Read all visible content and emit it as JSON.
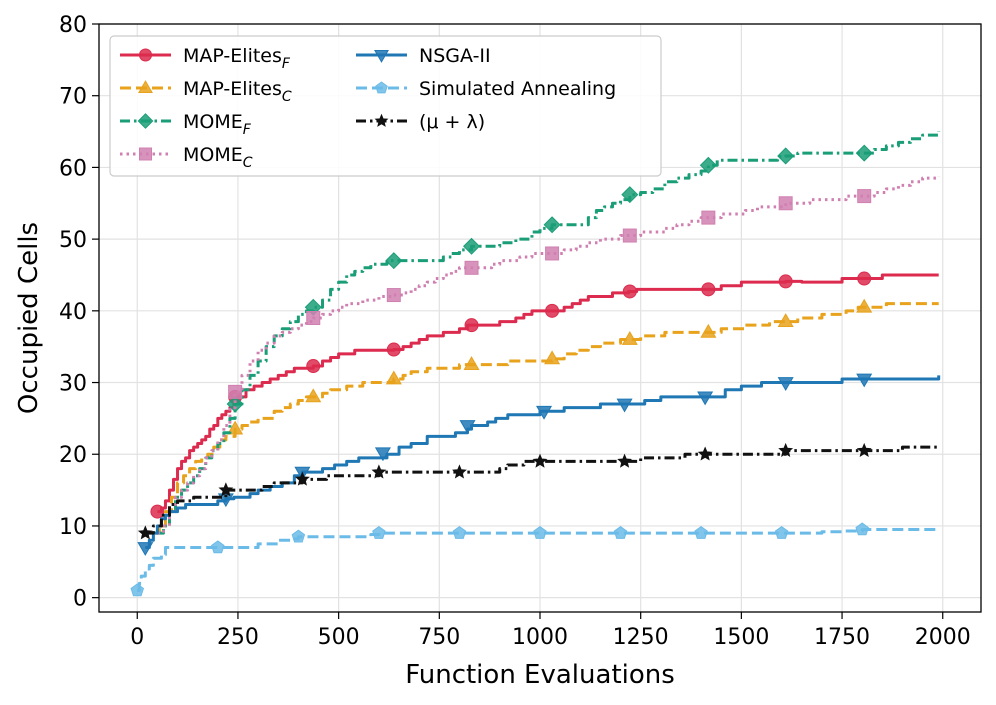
{
  "chart_data": {
    "type": "line",
    "title": "",
    "xlabel": "Function Evaluations",
    "ylabel": "Occupied Cells",
    "xlim": [
      -95,
      2095
    ],
    "ylim": [
      -2,
      80
    ],
    "xticks": [
      0,
      250,
      500,
      750,
      1000,
      1250,
      1500,
      1750,
      2000
    ],
    "yticks": [
      0,
      10,
      20,
      30,
      40,
      50,
      60,
      70,
      80
    ],
    "grid": true,
    "legend_position": "upper-left",
    "series": [
      {
        "name": "MAP-Elites",
        "subscript": "F",
        "color": "#dc2b4e",
        "dash": "solid",
        "marker": "circle",
        "x": [
          50,
          60,
          70,
          80,
          90,
          100,
          110,
          120,
          130,
          140,
          150,
          160,
          170,
          180,
          190,
          200,
          210,
          220,
          230,
          240,
          250,
          270,
          290,
          310,
          330,
          350,
          370,
          390,
          410,
          437,
          460,
          480,
          500,
          520,
          540,
          560,
          580,
          600,
          620,
          637,
          660,
          680,
          700,
          720,
          740,
          760,
          780,
          800,
          820,
          830,
          860,
          880,
          900,
          920,
          940,
          960,
          980,
          1000,
          1020,
          1030,
          1060,
          1080,
          1100,
          1120,
          1140,
          1160,
          1180,
          1200,
          1220,
          1240,
          1270,
          1300,
          1350,
          1380,
          1400,
          1420,
          1450,
          1480,
          1500,
          1550,
          1580,
          1610,
          1650,
          1700,
          1750,
          1800,
          1850,
          1900,
          1950,
          1990
        ],
        "y": [
          12,
          12.5,
          13.5,
          15,
          16.5,
          18,
          19,
          19.5,
          20.5,
          21,
          21.5,
          22,
          22.5,
          23.5,
          24,
          25,
          25.5,
          26,
          26.5,
          27,
          28,
          29,
          29.5,
          30,
          30.5,
          31,
          31.5,
          32,
          32,
          32.3,
          33,
          33.5,
          34,
          34,
          34.5,
          34.5,
          34.5,
          34.5,
          34.5,
          34.6,
          35,
          35.5,
          36,
          36.5,
          36.5,
          37,
          37,
          37.5,
          38,
          38,
          38,
          38,
          38.5,
          38.5,
          39,
          39.5,
          40,
          40,
          40,
          40,
          40.5,
          41,
          41.5,
          42,
          42,
          42,
          42.5,
          42.5,
          42.7,
          43,
          43,
          43,
          43,
          43,
          43,
          43,
          43.5,
          43.5,
          44,
          44,
          44,
          44.1,
          44,
          44,
          44.5,
          44.5,
          45,
          45,
          45,
          45
        ],
        "marker_x": [
          50,
          243,
          437,
          637,
          830,
          1030,
          1223,
          1418,
          1610,
          1805
        ],
        "marker_y": [
          12,
          28,
          32.3,
          34.6,
          38,
          40,
          42.7,
          43,
          44.1,
          44.5
        ]
      },
      {
        "name": "MAP-Elites",
        "subscript": "C",
        "color": "#e8a21b",
        "dash": "dashed",
        "marker": "triangle-up",
        "x": [
          40,
          55,
          70,
          85,
          100,
          115,
          130,
          145,
          160,
          175,
          190,
          205,
          220,
          243,
          260,
          280,
          300,
          320,
          340,
          360,
          380,
          400,
          420,
          437,
          460,
          480,
          500,
          520,
          540,
          560,
          580,
          600,
          620,
          637,
          660,
          680,
          700,
          720,
          740,
          760,
          780,
          800,
          830,
          860,
          880,
          900,
          920,
          950,
          980,
          1000,
          1030,
          1060,
          1090,
          1120,
          1150,
          1180,
          1200,
          1223,
          1250,
          1280,
          1310,
          1350,
          1380,
          1418,
          1450,
          1480,
          1510,
          1540,
          1570,
          1610,
          1640,
          1670,
          1700,
          1730,
          1760,
          1790,
          1805,
          1830,
          1860,
          1890,
          1920,
          1950,
          1990
        ],
        "y": [
          9,
          10,
          12,
          14,
          16,
          17,
          18,
          19,
          19.5,
          20,
          21,
          22,
          22.5,
          23.5,
          24,
          24.5,
          25,
          25,
          26,
          26.5,
          27,
          27.5,
          28,
          28,
          28.5,
          29,
          29,
          29.5,
          29.5,
          30,
          30,
          30,
          30,
          30.5,
          31,
          31.5,
          31.5,
          32,
          32,
          32,
          32,
          32.5,
          32.5,
          32.5,
          32.5,
          32.5,
          33,
          33,
          33,
          33,
          33.3,
          34,
          34.5,
          35,
          35.5,
          35.5,
          36,
          36,
          36.5,
          36.5,
          37,
          37,
          37,
          37,
          37.5,
          37.5,
          38,
          38,
          38.5,
          38.5,
          39,
          39,
          39.5,
          39.5,
          40,
          40.5,
          40.5,
          40.5,
          41,
          41,
          41,
          41,
          41
        ],
        "marker_x": [
          243,
          437,
          637,
          830,
          1030,
          1223,
          1418,
          1610,
          1805
        ],
        "marker_y": [
          23.5,
          28,
          30.5,
          32.5,
          33.3,
          36,
          37,
          38.5,
          40.5
        ]
      },
      {
        "name": "MOME",
        "subscript": "F",
        "color": "#1a9e77",
        "dash": "dashdot",
        "marker": "diamond",
        "x": [
          50,
          65,
          80,
          95,
          110,
          125,
          140,
          155,
          170,
          185,
          200,
          215,
          230,
          243,
          260,
          280,
          300,
          320,
          340,
          360,
          380,
          400,
          420,
          437,
          460,
          480,
          500,
          520,
          540,
          560,
          580,
          600,
          620,
          637,
          660,
          680,
          700,
          720,
          740,
          760,
          780,
          800,
          830,
          860,
          880,
          900,
          920,
          940,
          960,
          980,
          1000,
          1030,
          1060,
          1080,
          1100,
          1120,
          1140,
          1160,
          1180,
          1200,
          1223,
          1250,
          1280,
          1310,
          1340,
          1370,
          1400,
          1418,
          1440,
          1470,
          1500,
          1530,
          1560,
          1590,
          1610,
          1640,
          1670,
          1700,
          1730,
          1760,
          1805,
          1830,
          1860,
          1890,
          1920,
          1950,
          1990
        ],
        "y": [
          9,
          10,
          12,
          14,
          15,
          16,
          17,
          18,
          19.5,
          20.5,
          21.5,
          23,
          25,
          27,
          29,
          31,
          33,
          35,
          36.5,
          37.5,
          38.5,
          39.5,
          40,
          40.5,
          41.5,
          43,
          44,
          45,
          45.5,
          46,
          46.5,
          46.5,
          47,
          47,
          47,
          47,
          47,
          47,
          47,
          47.5,
          48,
          48.5,
          49,
          49,
          49,
          49.5,
          49.5,
          50,
          50,
          51,
          51.5,
          52,
          52,
          52,
          52,
          53,
          54,
          54.5,
          55,
          55.5,
          56.2,
          56.5,
          57,
          58,
          58.5,
          59,
          59.5,
          60.3,
          61,
          61,
          61,
          61,
          61,
          61.5,
          61.6,
          62,
          62,
          62,
          62,
          62,
          62,
          62.5,
          63,
          63.5,
          64,
          64.5,
          65
        ],
        "marker_x": [
          243,
          437,
          637,
          830,
          1030,
          1223,
          1418,
          1610,
          1805
        ],
        "marker_y": [
          27,
          40.5,
          47,
          49,
          52,
          56.2,
          60.3,
          61.6,
          62
        ]
      },
      {
        "name": "MOME",
        "subscript": "C",
        "color": "#d080b0",
        "dash": "dotted",
        "marker": "square",
        "x": [
          50,
          65,
          80,
          95,
          110,
          125,
          140,
          155,
          170,
          185,
          200,
          215,
          230,
          243,
          260,
          280,
          300,
          320,
          340,
          360,
          380,
          400,
          420,
          437,
          460,
          480,
          500,
          520,
          540,
          560,
          580,
          600,
          620,
          637,
          660,
          680,
          700,
          720,
          740,
          760,
          780,
          800,
          830,
          860,
          880,
          900,
          920,
          950,
          980,
          1000,
          1030,
          1060,
          1090,
          1120,
          1150,
          1180,
          1200,
          1223,
          1250,
          1280,
          1310,
          1340,
          1370,
          1400,
          1418,
          1450,
          1480,
          1510,
          1540,
          1570,
          1610,
          1640,
          1670,
          1700,
          1730,
          1760,
          1805,
          1830,
          1860,
          1890,
          1920,
          1950,
          1990
        ],
        "y": [
          9,
          10,
          12,
          14,
          15,
          16,
          17,
          18,
          19.5,
          20.5,
          22,
          24,
          26.5,
          28.7,
          31,
          33,
          34.5,
          35.5,
          36.5,
          37,
          37.5,
          38,
          38.5,
          39,
          39.5,
          40,
          40.5,
          41,
          41,
          41.5,
          41.5,
          42,
          42,
          42.2,
          42.5,
          43,
          43.5,
          44,
          44.5,
          45,
          45.5,
          46,
          46,
          46,
          46.5,
          47,
          47,
          47.5,
          48,
          48,
          48,
          48.5,
          49,
          49.5,
          50,
          50,
          50.5,
          50.5,
          51,
          51,
          51.5,
          52,
          52.5,
          53,
          53,
          53.5,
          53.5,
          54,
          54.5,
          54.5,
          55,
          55,
          55.5,
          55.5,
          55.5,
          56,
          56,
          56.5,
          57,
          57.5,
          58,
          58.5,
          58.7
        ],
        "marker_x": [
          243,
          437,
          637,
          830,
          1030,
          1223,
          1418,
          1610,
          1805
        ],
        "marker_y": [
          28.7,
          39,
          42.2,
          46,
          48,
          50.5,
          53,
          55,
          56
        ]
      },
      {
        "name": "NSGA-II",
        "color": "#1f77b4",
        "dash": "solid",
        "marker": "triangle-down",
        "x": [
          20,
          30,
          40,
          50,
          60,
          70,
          80,
          100,
          120,
          140,
          160,
          180,
          200,
          220,
          240,
          260,
          280,
          300,
          330,
          360,
          390,
          410,
          437,
          460,
          490,
          520,
          550,
          580,
          600,
          620,
          650,
          680,
          720,
          760,
          790,
          820,
          830,
          850,
          870,
          890,
          920,
          960,
          1000,
          1030,
          1060,
          1100,
          1150,
          1200,
          1223,
          1260,
          1300,
          1350,
          1400,
          1418,
          1460,
          1500,
          1550,
          1610,
          1650,
          1700,
          1750,
          1805,
          1850,
          1900,
          1950,
          1990
        ],
        "y": [
          7,
          8,
          9,
          10,
          11,
          11.5,
          12,
          12.5,
          13,
          13,
          13,
          13,
          13.5,
          13.8,
          14,
          14,
          14.5,
          15,
          15.5,
          16,
          17,
          17.5,
          17.5,
          18,
          18.5,
          19,
          19.5,
          19.5,
          19.5,
          20,
          21,
          21.5,
          22.5,
          22.5,
          23,
          23.5,
          24,
          24,
          24.5,
          25,
          25.5,
          25.5,
          26,
          26,
          26.5,
          26.5,
          27,
          27,
          27,
          27.5,
          28,
          28,
          28,
          28,
          29,
          29.5,
          30,
          30,
          30,
          30,
          30.5,
          30.5,
          30.5,
          30.5,
          30.5,
          31
        ],
        "marker_x": [
          20,
          220,
          410,
          610,
          820,
          1010,
          1210,
          1410,
          1610,
          1805
        ],
        "marker_y": [
          7,
          13.8,
          17.5,
          20.2,
          24,
          26,
          27,
          28,
          30,
          30.5
        ]
      },
      {
        "name": "Simulated Annealing",
        "color": "#6bbbe8",
        "dash": "dashed",
        "marker": "pentagon",
        "x": [
          0,
          5,
          10,
          20,
          30,
          40,
          50,
          60,
          70,
          80,
          100,
          150,
          200,
          250,
          300,
          350,
          380,
          400,
          450,
          500,
          550,
          580,
          600,
          650,
          700,
          800,
          900,
          1000,
          1100,
          1200,
          1300,
          1400,
          1500,
          1600,
          1700,
          1750,
          1800,
          1850,
          1900,
          1990
        ],
        "y": [
          1,
          2,
          3,
          4,
          4.5,
          5.5,
          5.5,
          6,
          7,
          7,
          7,
          7,
          7,
          7,
          7.5,
          8,
          8.2,
          8.5,
          8.5,
          8.5,
          8.5,
          8.8,
          9,
          9,
          9,
          9,
          9,
          9,
          9,
          9,
          9,
          9,
          9,
          9,
          9.2,
          9.3,
          9.5,
          9.5,
          9.5,
          9.5
        ],
        "marker_x": [
          0,
          200,
          400,
          600,
          800,
          1000,
          1200,
          1400,
          1600,
          1800
        ],
        "marker_y": [
          1,
          7,
          8.5,
          9,
          9,
          9,
          9,
          9,
          9,
          9.5
        ]
      },
      {
        "name": "(μ + λ)",
        "color": "#111111",
        "dash": "dashdot",
        "marker": "star",
        "x": [
          20,
          40,
          60,
          80,
          100,
          120,
          140,
          160,
          180,
          200,
          220,
          250,
          280,
          310,
          340,
          370,
          410,
          440,
          470,
          500,
          530,
          560,
          600,
          640,
          680,
          720,
          760,
          800,
          840,
          880,
          900,
          920,
          960,
          1000,
          1050,
          1100,
          1150,
          1210,
          1250,
          1280,
          1320,
          1360,
          1410,
          1450,
          1500,
          1550,
          1610,
          1650,
          1700,
          1750,
          1805,
          1850,
          1900,
          1950,
          1990
        ],
        "y": [
          9,
          10,
          11.5,
          13,
          13.5,
          13.5,
          14,
          14,
          14,
          14,
          15,
          15,
          15,
          15.5,
          16,
          16,
          16.5,
          16.5,
          17,
          17,
          17,
          17,
          17.5,
          17.5,
          17.5,
          17.5,
          17.5,
          17.5,
          17.5,
          17.5,
          18,
          18.5,
          19,
          19,
          19,
          19,
          19,
          19,
          19.5,
          19.5,
          19.5,
          20,
          20,
          20,
          20,
          20,
          20.5,
          20.5,
          20.5,
          20.5,
          20.5,
          20.5,
          21,
          21,
          21
        ],
        "marker_x": [
          20,
          220,
          410,
          600,
          800,
          1000,
          1210,
          1410,
          1610,
          1805
        ],
        "marker_y": [
          9,
          15,
          16.5,
          17.5,
          17.5,
          19,
          19,
          20,
          20.5,
          20.5
        ]
      }
    ]
  }
}
